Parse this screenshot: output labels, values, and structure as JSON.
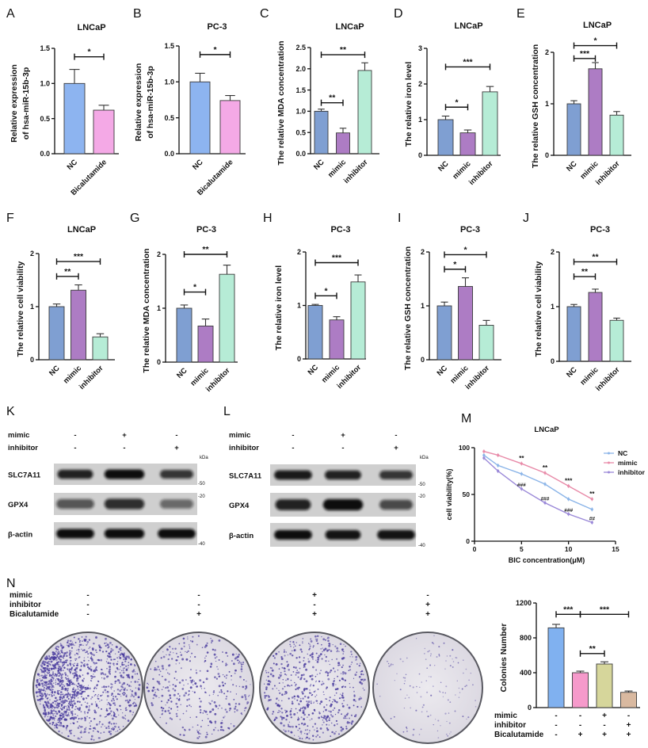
{
  "chart_data": [
    {
      "panel_label": "A",
      "type": "bar",
      "title": "LNCaP",
      "ylabel_lines": [
        "Relative expression",
        "of hsa-miR-15b-3p"
      ],
      "categories": [
        "NC",
        "Bicalutamide"
      ],
      "values": [
        1.0,
        0.62
      ],
      "errors": [
        0.2,
        0.07
      ],
      "ylim": [
        0,
        1.5
      ],
      "yticks": [
        "0.0",
        "0.5",
        "1.0",
        "1.5"
      ],
      "colors": [
        "#8db4f0",
        "#f4a9e6"
      ],
      "significance": [
        {
          "from": 0,
          "to": 1,
          "label": "*",
          "y": 1.38
        }
      ]
    },
    {
      "panel_label": "B",
      "type": "bar",
      "title": "PC-3",
      "ylabel_lines": [
        "Relative expression",
        "of hsa-miR-15b-3p"
      ],
      "categories": [
        "NC",
        "Bicalutamide"
      ],
      "values": [
        1.0,
        0.74
      ],
      "errors": [
        0.12,
        0.07
      ],
      "ylim": [
        0,
        1.5
      ],
      "yticks": [
        "0.0",
        "0.5",
        "1.0",
        "1.5"
      ],
      "colors": [
        "#8db4f0",
        "#f4a9e6"
      ],
      "significance": [
        {
          "from": 0,
          "to": 1,
          "label": "*",
          "y": 1.38
        }
      ]
    },
    {
      "panel_label": "C",
      "type": "bar",
      "title": "LNCaP",
      "ylabel_lines": [
        "The relative MDA concentration"
      ],
      "categories": [
        "NC",
        "mimic",
        "inhibitor"
      ],
      "values": [
        1.0,
        0.49,
        1.96
      ],
      "errors": [
        0.05,
        0.11,
        0.18
      ],
      "ylim": [
        0,
        2.5
      ],
      "yticks": [
        "0.0",
        "0.5",
        "1.0",
        "1.5",
        "2.0",
        "2.5"
      ],
      "colors": [
        "#7f9fd2",
        "#ad7cc4",
        "#b6ecd6"
      ],
      "significance": [
        {
          "from": 0,
          "to": 1,
          "label": "**",
          "y": 1.2
        },
        {
          "from": 0,
          "to": 2,
          "label": "**",
          "y": 2.33
        }
      ]
    },
    {
      "panel_label": "D",
      "type": "bar",
      "title": "LNCaP",
      "ylabel_lines": [
        "The relative iron level"
      ],
      "categories": [
        "NC",
        "mimic",
        "inhibitor"
      ],
      "values": [
        1.0,
        0.63,
        1.78
      ],
      "errors": [
        0.1,
        0.08,
        0.15
      ],
      "ylim": [
        0,
        3
      ],
      "yticks": [
        "0",
        "1",
        "2",
        "3"
      ],
      "colors": [
        "#7f9fd2",
        "#ad7cc4",
        "#b6ecd6"
      ],
      "significance": [
        {
          "from": 0,
          "to": 1,
          "label": "*",
          "y": 1.35
        },
        {
          "from": 0,
          "to": 2,
          "label": "***",
          "y": 2.48
        }
      ]
    },
    {
      "panel_label": "E",
      "type": "bar",
      "title": "LNCaP",
      "ylabel_lines": [
        "The relative GSH concentration"
      ],
      "categories": [
        "NC",
        "mimic",
        "inhibitor"
      ],
      "values": [
        1.0,
        1.68,
        0.78
      ],
      "errors": [
        0.06,
        0.12,
        0.07
      ],
      "ylim": [
        0,
        2
      ],
      "yticks": [
        "0",
        "1",
        "2"
      ],
      "colors": [
        "#7f9fd2",
        "#ad7cc4",
        "#b6ecd6"
      ],
      "significance": [
        {
          "from": 0,
          "to": 1,
          "label": "***",
          "y": 1.88
        },
        {
          "from": 0,
          "to": 2,
          "label": "*",
          "y": 2.13
        }
      ]
    },
    {
      "panel_label": "F",
      "type": "bar",
      "title": "LNCaP",
      "ylabel_lines": [
        "The relative cell viability"
      ],
      "categories": [
        "NC",
        "mimic",
        "inhibitor"
      ],
      "values": [
        1.0,
        1.31,
        0.43
      ],
      "errors": [
        0.05,
        0.1,
        0.06
      ],
      "ylim": [
        0,
        2
      ],
      "yticks": [
        "0",
        "1",
        "2"
      ],
      "colors": [
        "#7f9fd2",
        "#ad7cc4",
        "#b6ecd6"
      ],
      "significance": [
        {
          "from": 0,
          "to": 1,
          "label": "**",
          "y": 1.57
        },
        {
          "from": 0,
          "to": 2,
          "label": "***",
          "y": 1.85
        }
      ]
    },
    {
      "panel_label": "G",
      "type": "bar",
      "title": "PC-3",
      "ylabel_lines": [
        "The relative MDA concentration"
      ],
      "categories": [
        "NC",
        "mimic",
        "inhibitor"
      ],
      "values": [
        1.0,
        0.67,
        1.63
      ],
      "errors": [
        0.06,
        0.13,
        0.17
      ],
      "ylim": [
        0,
        2
      ],
      "yticks": [
        "0",
        "1",
        "2"
      ],
      "colors": [
        "#7f9fd2",
        "#ad7cc4",
        "#b6ecd6"
      ],
      "significance": [
        {
          "from": 0,
          "to": 1,
          "label": "*",
          "y": 1.3
        },
        {
          "from": 0,
          "to": 2,
          "label": "**",
          "y": 2.0
        }
      ]
    },
    {
      "panel_label": "H",
      "type": "bar",
      "title": "PC-3",
      "ylabel_lines": [
        "The relative iron level"
      ],
      "categories": [
        "NC",
        "mimic",
        "inhibitor"
      ],
      "values": [
        1.0,
        0.73,
        1.44
      ],
      "errors": [
        0.02,
        0.06,
        0.13
      ],
      "ylim": [
        0,
        2
      ],
      "yticks": [
        "0",
        "1",
        "2"
      ],
      "colors": [
        "#7f9fd2",
        "#ad7cc4",
        "#b6ecd6"
      ],
      "significance": [
        {
          "from": 0,
          "to": 1,
          "label": "*",
          "y": 1.18
        },
        {
          "from": 0,
          "to": 2,
          "label": "***",
          "y": 1.8
        }
      ]
    },
    {
      "panel_label": "I",
      "type": "bar",
      "title": "PC-3",
      "ylabel_lines": [
        "The relative GSH concentration"
      ],
      "categories": [
        "NC",
        "mimic",
        "inhibitor"
      ],
      "values": [
        1.0,
        1.36,
        0.64
      ],
      "errors": [
        0.07,
        0.16,
        0.09
      ],
      "ylim": [
        0,
        2
      ],
      "yticks": [
        "0",
        "1",
        "2"
      ],
      "colors": [
        "#7f9fd2",
        "#ad7cc4",
        "#b6ecd6"
      ],
      "significance": [
        {
          "from": 0,
          "to": 1,
          "label": "*",
          "y": 1.68
        },
        {
          "from": 0,
          "to": 2,
          "label": "*",
          "y": 1.95
        }
      ]
    },
    {
      "panel_label": "J",
      "type": "bar",
      "title": "PC-3",
      "ylabel_lines": [
        "The relative cell viability"
      ],
      "categories": [
        "NC",
        "mimic",
        "inhibitor"
      ],
      "values": [
        1.0,
        1.26,
        0.75
      ],
      "errors": [
        0.04,
        0.06,
        0.04
      ],
      "ylim": [
        0,
        2
      ],
      "yticks": [
        "0",
        "1",
        "2"
      ],
      "colors": [
        "#7f9fd2",
        "#ad7cc4",
        "#b6ecd6"
      ],
      "significance": [
        {
          "from": 0,
          "to": 1,
          "label": "**",
          "y": 1.55
        },
        {
          "from": 0,
          "to": 2,
          "label": "**",
          "y": 1.82
        }
      ]
    },
    {
      "panel_label": "M",
      "type": "line",
      "title": "LNCaP",
      "xlabel": "BIC concentration(μM)",
      "ylabel": "cell viability(%)",
      "xlim": [
        0,
        15
      ],
      "ylim": [
        0,
        100
      ],
      "xticks": [
        "0",
        "5",
        "10",
        "15"
      ],
      "yticks": [
        "0",
        "50",
        "100"
      ],
      "legend_position": "top-right",
      "x": [
        1,
        2.5,
        5,
        7.5,
        10,
        12.5
      ],
      "series": [
        {
          "name": "NC",
          "values": [
            92,
            81,
            72,
            61,
            45,
            34
          ],
          "color": "#8ab4e8"
        },
        {
          "name": "mimic",
          "values": [
            96,
            92,
            83,
            73,
            59,
            45
          ],
          "color": "#e88aa8"
        },
        {
          "name": "inhibitor",
          "values": [
            89,
            75,
            56,
            41,
            29,
            20
          ],
          "color": "#9a88d8"
        }
      ],
      "annotations": [
        {
          "x": 5,
          "y": 83,
          "label": "**"
        },
        {
          "x": 7.5,
          "y": 73,
          "label": "**"
        },
        {
          "x": 10,
          "y": 59,
          "label": "***"
        },
        {
          "x": 12.5,
          "y": 45,
          "label": "**"
        },
        {
          "x": 5,
          "y": 56,
          "label": "###"
        },
        {
          "x": 7.5,
          "y": 41,
          "label": "###"
        },
        {
          "x": 10,
          "y": 29,
          "label": "###"
        },
        {
          "x": 12.5,
          "y": 20,
          "label": "##"
        }
      ]
    },
    {
      "panel_label": "N",
      "type": "bar",
      "title": "",
      "ylabel_lines": [
        "Colonies Number"
      ],
      "categories": [
        "",
        "",
        "",
        ""
      ],
      "values": [
        915,
        400,
        500,
        175
      ],
      "errors": [
        40,
        18,
        25,
        15
      ],
      "ylim": [
        0,
        1200
      ],
      "yticks": [
        "0",
        "400",
        "800",
        "1200"
      ],
      "colors": [
        "#80b1f0",
        "#f69acb",
        "#d6d69b",
        "#d9b9a0"
      ],
      "significance": [
        {
          "from": 0,
          "to": 1,
          "label": "***",
          "y": 1070
        },
        {
          "from": 1,
          "to": 3,
          "label": "***",
          "y": 1070
        },
        {
          "from": 1,
          "to": 2,
          "label": "**",
          "y": 620
        }
      ],
      "conditions": [
        {
          "label": "mimic",
          "values": [
            "-",
            "-",
            "+",
            "-"
          ]
        },
        {
          "label": "inhibitor",
          "values": [
            "-",
            "-",
            "-",
            "+"
          ]
        },
        {
          "label": "Bicalutamide",
          "values": [
            "-",
            "+",
            "+",
            "+"
          ]
        }
      ]
    }
  ],
  "western_blots": [
    {
      "panel_label": "K",
      "unit": "kDa",
      "conditions": [
        {
          "label": "mimic",
          "values": [
            "-",
            "+",
            "-"
          ]
        },
        {
          "label": "inhibitor",
          "values": [
            "-",
            "-",
            "+"
          ]
        }
      ],
      "rows": [
        {
          "label": "SLC7A11",
          "marker": "-50"
        },
        {
          "label": "GPX4",
          "marker": "-20"
        },
        {
          "label": "β-actin",
          "marker": "-40"
        }
      ]
    },
    {
      "panel_label": "L",
      "unit": "kDa",
      "conditions": [
        {
          "label": "mimic",
          "values": [
            "-",
            "+",
            "-"
          ]
        },
        {
          "label": "inhibitor",
          "values": [
            "-",
            "-",
            "+"
          ]
        }
      ],
      "rows": [
        {
          "label": "SLC7A11",
          "marker": "-50"
        },
        {
          "label": "GPX4",
          "marker": "-20"
        },
        {
          "label": "β-actin",
          "marker": "-40"
        }
      ]
    }
  ],
  "colony_assay": {
    "panel_label": "N",
    "conditions": [
      {
        "label": "mimic",
        "values": [
          "-",
          "-",
          "+",
          "-"
        ]
      },
      {
        "label": "inhibitor",
        "values": [
          "-",
          "-",
          "-",
          "+"
        ]
      },
      {
        "label": "Bicalutamide",
        "values": [
          "-",
          "+",
          "+",
          "+"
        ]
      }
    ]
  }
}
